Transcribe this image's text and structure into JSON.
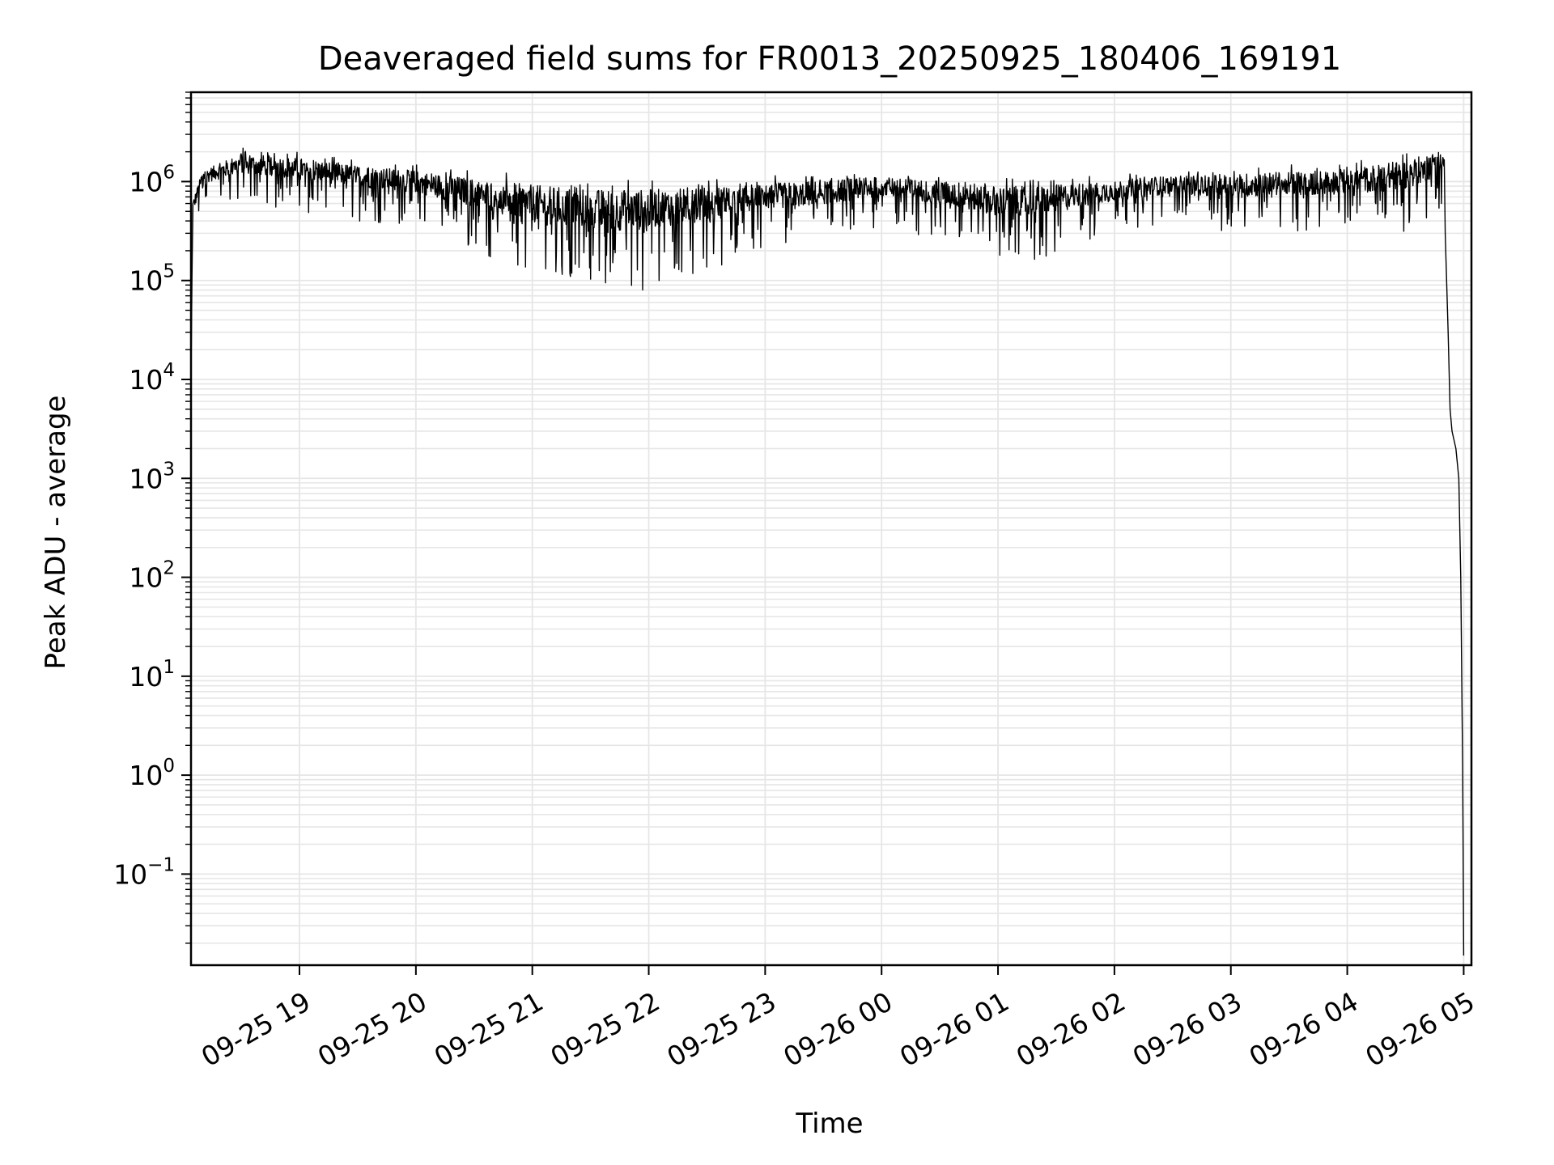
{
  "chart_data": {
    "type": "line",
    "title": "Deaveraged field sums for FR0013_20250925_180406_169191",
    "xlabel": "Time",
    "ylabel": "Peak ADU - average",
    "x_start": "2025-09-25 18:04:06",
    "x_end": "2025-09-26 05:04:00",
    "xlim": [
      "2025-09-25 18:04:06",
      "2025-09-26 05:04:00"
    ],
    "x_ticks": [
      "09-25 19",
      "09-25 20",
      "09-25 21",
      "09-25 22",
      "09-25 23",
      "09-26 00",
      "09-26 01",
      "09-26 02",
      "09-26 03",
      "09-26 04",
      "09-26 05"
    ],
    "x_tick_label_rotation_deg": 30,
    "y_scale": "log",
    "ylim": [
      0.012,
      8000000
    ],
    "y_ticks": [
      {
        "base": "10",
        "exp": "6",
        "value": 1000000
      },
      {
        "base": "10",
        "exp": "5",
        "value": 100000
      },
      {
        "base": "10",
        "exp": "4",
        "value": 10000
      },
      {
        "base": "10",
        "exp": "3",
        "value": 1000
      },
      {
        "base": "10",
        "exp": "2",
        "value": 100
      },
      {
        "base": "10",
        "exp": "1",
        "value": 10
      },
      {
        "base": "10",
        "exp": "0",
        "value": 1
      },
      {
        "base": "10",
        "exp": "−1",
        "value": 0.1
      }
    ],
    "grid": true,
    "line_color": "#000000",
    "grid_color": "#e6e6e6",
    "series": [
      {
        "envelope": [
          {
            "x": "2025-09-25 18:04:06",
            "lo": 10000,
            "hi": 12000
          },
          {
            "x": "2025-09-25 18:05:00",
            "lo": 300000,
            "hi": 700000
          },
          {
            "x": "2025-09-25 18:10:00",
            "lo": 600000,
            "hi": 1400000
          },
          {
            "x": "2025-09-25 18:30:00",
            "lo": 600000,
            "hi": 2200000
          },
          {
            "x": "2025-09-25 19:00:00",
            "lo": 500000,
            "hi": 2000000
          },
          {
            "x": "2025-09-25 19:30:00",
            "lo": 400000,
            "hi": 1700000
          },
          {
            "x": "2025-09-25 20:00:00",
            "lo": 350000,
            "hi": 1500000
          },
          {
            "x": "2025-09-25 20:30:00",
            "lo": 200000,
            "hi": 1300000
          },
          {
            "x": "2025-09-25 21:00:00",
            "lo": 100000,
            "hi": 1200000
          },
          {
            "x": "2025-09-25 21:30:00",
            "lo": 80000,
            "hi": 1100000
          },
          {
            "x": "2025-09-25 21:50:00",
            "lo": 70000,
            "hi": 1100000
          },
          {
            "x": "2025-09-25 22:30:00",
            "lo": 120000,
            "hi": 1100000
          },
          {
            "x": "2025-09-25 23:00:00",
            "lo": 200000,
            "hi": 1150000
          },
          {
            "x": "2025-09-25 23:30:00",
            "lo": 250000,
            "hi": 1200000
          },
          {
            "x": "2025-09-26 00:00:00",
            "lo": 350000,
            "hi": 1300000
          },
          {
            "x": "2025-09-26 00:30:00",
            "lo": 250000,
            "hi": 1200000
          },
          {
            "x": "2025-09-26 01:00:00",
            "lo": 160000,
            "hi": 1100000
          },
          {
            "x": "2025-09-26 01:20:00",
            "lo": 150000,
            "hi": 1100000
          },
          {
            "x": "2025-09-26 02:00:00",
            "lo": 300000,
            "hi": 1200000
          },
          {
            "x": "2025-09-26 02:30:00",
            "lo": 400000,
            "hi": 1300000
          },
          {
            "x": "2025-09-26 03:00:00",
            "lo": 300000,
            "hi": 1400000
          },
          {
            "x": "2025-09-26 03:30:00",
            "lo": 300000,
            "hi": 1500000
          },
          {
            "x": "2025-09-26 04:00:00",
            "lo": 300000,
            "hi": 1600000
          },
          {
            "x": "2025-09-26 04:30:00",
            "lo": 300000,
            "hi": 2000000
          },
          {
            "x": "2025-09-26 04:50:00",
            "lo": 500000,
            "hi": 2500000
          }
        ],
        "tail": [
          {
            "x": "2025-09-26 04:50:30",
            "y": 300000
          },
          {
            "x": "2025-09-26 04:52:00",
            "y": 30000
          },
          {
            "x": "2025-09-26 04:53:00",
            "y": 5000
          },
          {
            "x": "2025-09-26 04:54:00",
            "y": 3000
          },
          {
            "x": "2025-09-26 04:56:00",
            "y": 2000
          },
          {
            "x": "2025-09-26 04:57:30",
            "y": 1000
          },
          {
            "x": "2025-09-26 04:58:30",
            "y": 100
          },
          {
            "x": "2025-09-26 04:59:30",
            "y": 1
          },
          {
            "x": "2025-09-26 05:00:00",
            "y": 0.015
          }
        ]
      }
    ]
  }
}
